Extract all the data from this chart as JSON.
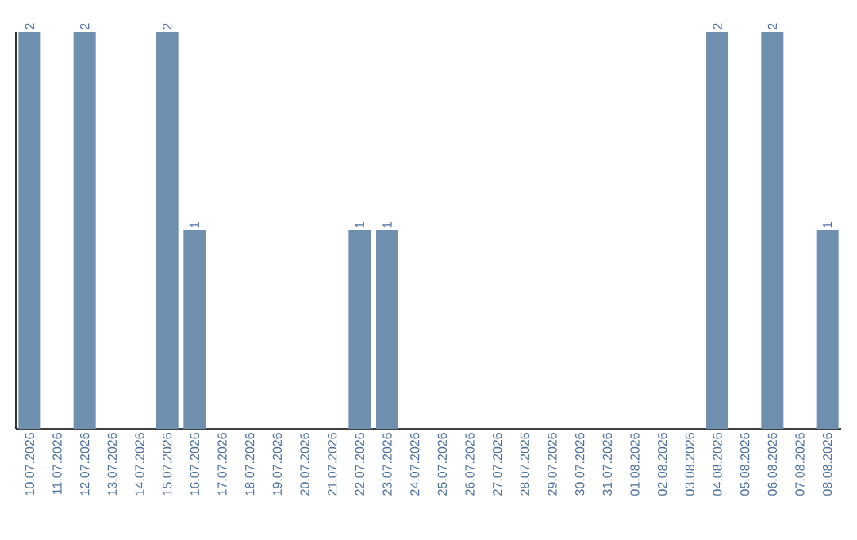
{
  "chart_data": {
    "type": "bar",
    "categories": [
      "10.07.2026",
      "11.07.2026",
      "12.07.2026",
      "13.07.2026",
      "14.07.2026",
      "15.07.2026",
      "16.07.2026",
      "17.07.2026",
      "18.07.2026",
      "19.07.2026",
      "20.07.2026",
      "21.07.2026",
      "22.07.2026",
      "23.07.2026",
      "24.07.2026",
      "25.07.2026",
      "26.07.2026",
      "27.07.2026",
      "28.07.2026",
      "29.07.2026",
      "30.07.2026",
      "31.07.2026",
      "01.08.2026",
      "02.08.2026",
      "03.08.2026",
      "04.08.2026",
      "05.08.2026",
      "06.08.2026",
      "07.08.2026",
      "08.08.2026"
    ],
    "values": [
      2,
      0,
      2,
      0,
      0,
      2,
      1,
      0,
      0,
      0,
      0,
      0,
      1,
      1,
      0,
      0,
      0,
      0,
      0,
      0,
      0,
      0,
      0,
      0,
      0,
      2,
      0,
      2,
      0,
      1
    ],
    "value_labels": [
      "2",
      null,
      "2",
      null,
      null,
      "2",
      "1",
      null,
      null,
      null,
      null,
      null,
      "1",
      "1",
      null,
      null,
      null,
      null,
      null,
      null,
      null,
      null,
      null,
      null,
      null,
      "2",
      null,
      "2",
      null,
      "1"
    ],
    "color": "#6e8fad",
    "grid": false
  }
}
